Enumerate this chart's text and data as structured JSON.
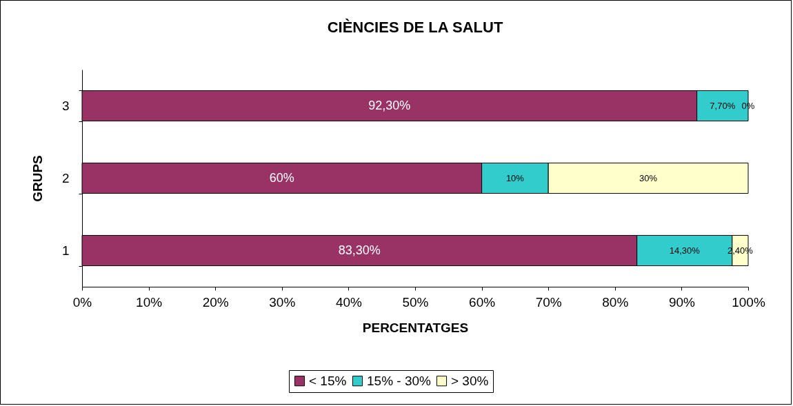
{
  "chart_data": {
    "type": "bar",
    "orientation": "horizontal",
    "stacked": true,
    "title": "CIÈNCIES DE LA SALUT",
    "xlabel": "PERCENTATGES",
    "ylabel": "GRUPS",
    "categories": [
      "3",
      "2",
      "1"
    ],
    "series": [
      {
        "name": "< 15%",
        "color": "#993366",
        "values": [
          92.3,
          60,
          83.3
        ],
        "value_labels": [
          "92,30%",
          "60%",
          "83,30%"
        ]
      },
      {
        "name": "15% - 30%",
        "color": "#33cccc",
        "values": [
          7.7,
          10,
          14.3
        ],
        "value_labels": [
          "7,70%",
          "10%",
          "14,30%"
        ]
      },
      {
        "name": "> 30%",
        "color": "#ffffcc",
        "values": [
          0,
          30,
          2.4
        ],
        "value_labels": [
          "0%",
          "30%",
          "2,40%"
        ]
      }
    ],
    "xlim": [
      0,
      100
    ],
    "xticks": [
      {
        "value": 0,
        "label": "0%"
      },
      {
        "value": 10,
        "label": "10%"
      },
      {
        "value": 20,
        "label": "20%"
      },
      {
        "value": 30,
        "label": "30%"
      },
      {
        "value": 40,
        "label": "40%"
      },
      {
        "value": 50,
        "label": "50%"
      },
      {
        "value": 60,
        "label": "60%"
      },
      {
        "value": 70,
        "label": "70%"
      },
      {
        "value": 80,
        "label": "80%"
      },
      {
        "value": 90,
        "label": "90%"
      },
      {
        "value": 100,
        "label": "100%"
      }
    ],
    "grid": false,
    "legend": "bottom"
  }
}
